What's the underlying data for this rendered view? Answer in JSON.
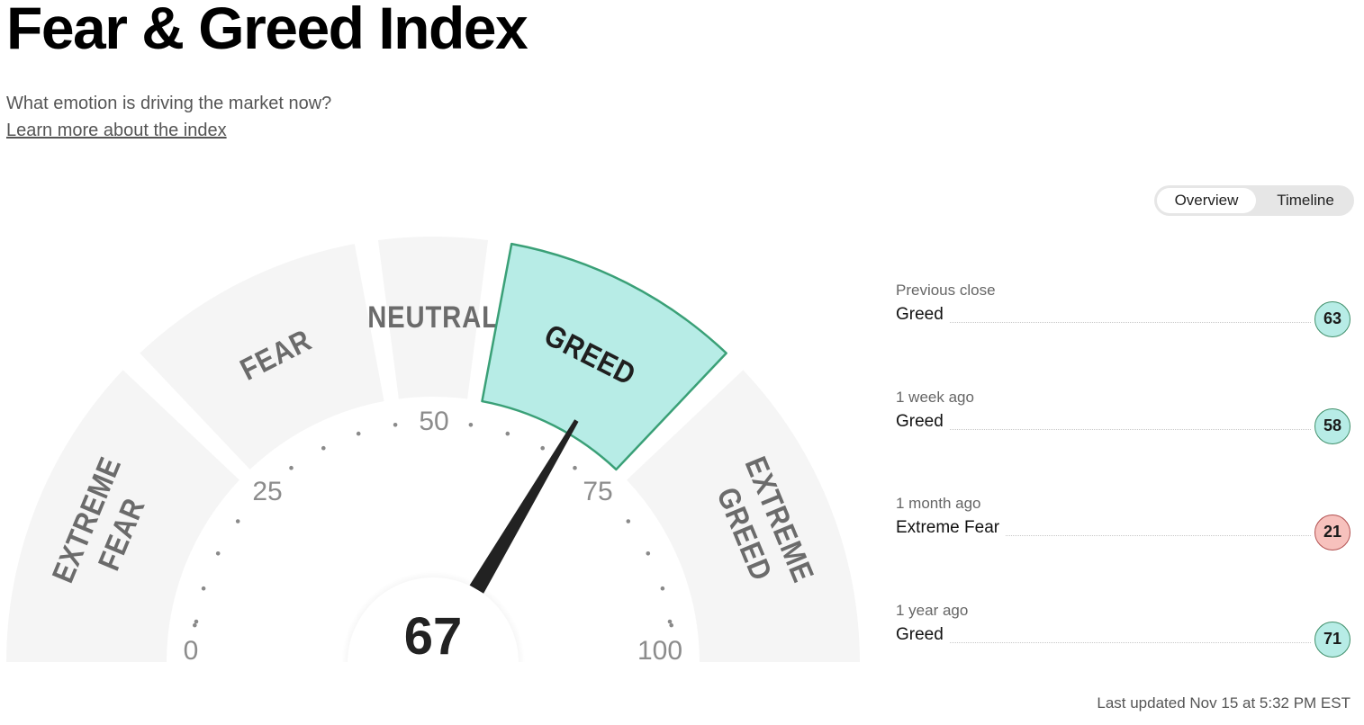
{
  "page": {
    "title": "Fear & Greed Index",
    "subtitle": "What emotion is driving the market now?",
    "learn_more": "Learn more about the index"
  },
  "toggle": {
    "overview": "Overview",
    "timeline": "Timeline",
    "active": "Overview"
  },
  "gauge": {
    "value": "67",
    "current_segment": "GREED",
    "segments": [
      {
        "label": [
          "EXTREME",
          "FEAR"
        ],
        "range": [
          0,
          25
        ]
      },
      {
        "label": [
          "FEAR"
        ],
        "range": [
          25,
          45
        ]
      },
      {
        "label": [
          "NEUTRAL"
        ],
        "range": [
          45,
          55
        ]
      },
      {
        "label": [
          "GREED"
        ],
        "range": [
          55,
          75
        ]
      },
      {
        "label": [
          "EXTREME",
          "GREED"
        ],
        "range": [
          75,
          100
        ]
      }
    ],
    "tick_labels": [
      "0",
      "25",
      "50",
      "75",
      "100"
    ]
  },
  "history": [
    {
      "period": "Previous close",
      "rating": "Greed",
      "value": "63",
      "tone": "greed"
    },
    {
      "period": "1 week ago",
      "rating": "Greed",
      "value": "58",
      "tone": "greed"
    },
    {
      "period": "1 month ago",
      "rating": "Extreme Fear",
      "value": "21",
      "tone": "fear"
    },
    {
      "period": "1 year ago",
      "rating": "Greed",
      "value": "71",
      "tone": "greed"
    }
  ],
  "last_updated": "Last updated Nov 15 at 5:32 PM EST",
  "colors": {
    "segment_bg": "#f5f5f5",
    "active_fill": "#b7ece6",
    "active_stroke": "#3aa077",
    "needle": "#222222",
    "fear_badge": "#f7c1bd"
  }
}
